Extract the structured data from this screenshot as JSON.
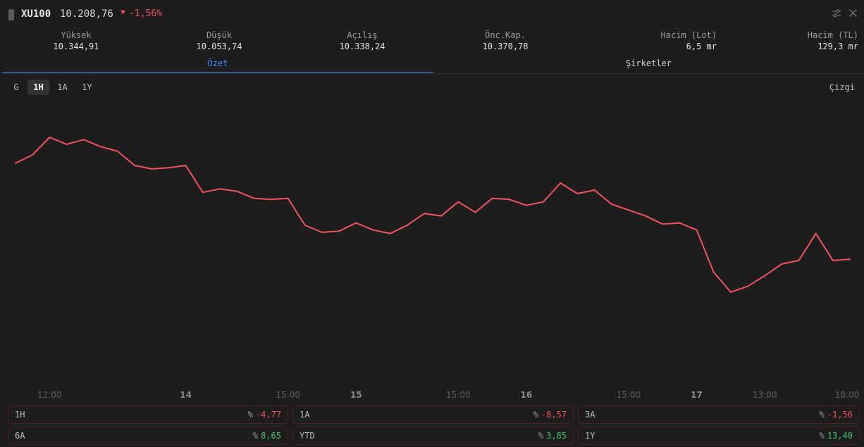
{
  "header": {
    "symbol": "XU100",
    "price": "10.208,76",
    "change": "-1,56%",
    "icons": {
      "trend": "caret-down-icon",
      "settings": "sliders-icon",
      "close": "close-icon"
    }
  },
  "stats": [
    {
      "label": "Yüksek",
      "value": "10.344,91"
    },
    {
      "label": "Düşük",
      "value": "10.053,74"
    },
    {
      "label": "Açılış",
      "value": "10.338,24"
    },
    {
      "label": "Önc.Kap.",
      "value": "10.370,78"
    },
    {
      "label": "Hacim (Lot)",
      "value": "6,5 mr"
    },
    {
      "label": "Hacim (TL)",
      "value": "129,3 mr"
    }
  ],
  "tabs": [
    {
      "label": "Özet",
      "active": true
    },
    {
      "label": "Şirketler",
      "active": false
    }
  ],
  "ranges": [
    {
      "label": "G",
      "active": false
    },
    {
      "label": "1H",
      "active": true
    },
    {
      "label": "1A",
      "active": false
    },
    {
      "label": "1Y",
      "active": false
    }
  ],
  "chart_type_label": "Çizgi",
  "colors": {
    "line": "#f0525e",
    "accent": "#3b8cff",
    "negative": "#f0525e",
    "positive": "#3ec46d"
  },
  "chart_data": {
    "type": "line",
    "x_ticks": [
      {
        "label": "12:00",
        "i": 2,
        "bold": false
      },
      {
        "label": "14",
        "i": 10,
        "bold": true
      },
      {
        "label": "15:00",
        "i": 16,
        "bold": false
      },
      {
        "label": "15",
        "i": 20,
        "bold": true
      },
      {
        "label": "15:00",
        "i": 26,
        "bold": false
      },
      {
        "label": "16",
        "i": 30,
        "bold": true
      },
      {
        "label": "15:00",
        "i": 36,
        "bold": false
      },
      {
        "label": "17",
        "i": 40,
        "bold": true
      },
      {
        "label": "13:00",
        "i": 44,
        "bold": false
      },
      {
        "label": "18:00",
        "i": 49,
        "bold": false
      }
    ],
    "values": [
      10365,
      10372,
      10387,
      10381,
      10385,
      10379,
      10375,
      10363,
      10360,
      10361,
      10363,
      10340,
      10343,
      10341,
      10335,
      10334,
      10335,
      10312,
      10306,
      10307,
      10314,
      10308,
      10305,
      10312,
      10322,
      10320,
      10332,
      10323,
      10335,
      10334,
      10329,
      10332,
      10348,
      10339,
      10342,
      10330,
      10325,
      10320,
      10313,
      10314,
      10308,
      10272,
      10255,
      10260,
      10269,
      10279,
      10282,
      10305,
      10282,
      10283
    ],
    "ylim": [
      10180,
      10420
    ]
  },
  "performance": [
    {
      "label": "1H",
      "pct": "%",
      "value": "-4,77",
      "sign": "neg"
    },
    {
      "label": "1A",
      "pct": "%",
      "value": "-8,57",
      "sign": "neg"
    },
    {
      "label": "3A",
      "pct": "%",
      "value": "-1,56",
      "sign": "neg"
    },
    {
      "label": "6A",
      "pct": "%",
      "value": "8,65",
      "sign": "pos"
    },
    {
      "label": "YTD",
      "pct": "%",
      "value": "3,85",
      "sign": "pos"
    },
    {
      "label": "1Y",
      "pct": "%",
      "value": "13,40",
      "sign": "pos"
    }
  ]
}
